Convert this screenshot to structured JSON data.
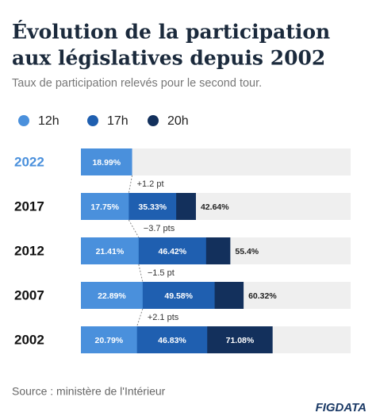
{
  "chart_data": {
    "type": "bar",
    "title": [
      "Évolution de la participation",
      "aux législatives depuis 2002"
    ],
    "subtitle": "Taux de participation relevés pour le second tour.",
    "source": "Source : ministère de l'Intérieur",
    "logo": "FIGDATA",
    "categories": [
      "2022",
      "2017",
      "2012",
      "2007",
      "2002"
    ],
    "series": [
      {
        "name": "12h",
        "color": "#4a90dc",
        "values": [
          18.99,
          17.75,
          21.41,
          22.89,
          20.79
        ],
        "value_labels": [
          "18.99%",
          "17.75%",
          "21.41%",
          "22.89%",
          "20.79%"
        ]
      },
      {
        "name": "17h",
        "color": "#1f5fb0",
        "values": [
          null,
          35.33,
          46.42,
          49.58,
          46.83
        ],
        "value_labels": [
          null,
          "35.33%",
          "46.42%",
          "49.58%",
          "46.83%"
        ]
      },
      {
        "name": "20h",
        "color": "#13305c",
        "values": [
          null,
          42.64,
          55.4,
          60.32,
          71.08
        ],
        "value_labels": [
          null,
          "42.64%",
          "55.4%",
          "60.32%",
          "71.08%"
        ]
      }
    ],
    "annotations": [
      "+1.2 pt",
      "−3.7 pts",
      "−1.5 pt",
      "+2.1 pts"
    ],
    "xlim": [
      0,
      100
    ],
    "track_color": "#efefef"
  }
}
